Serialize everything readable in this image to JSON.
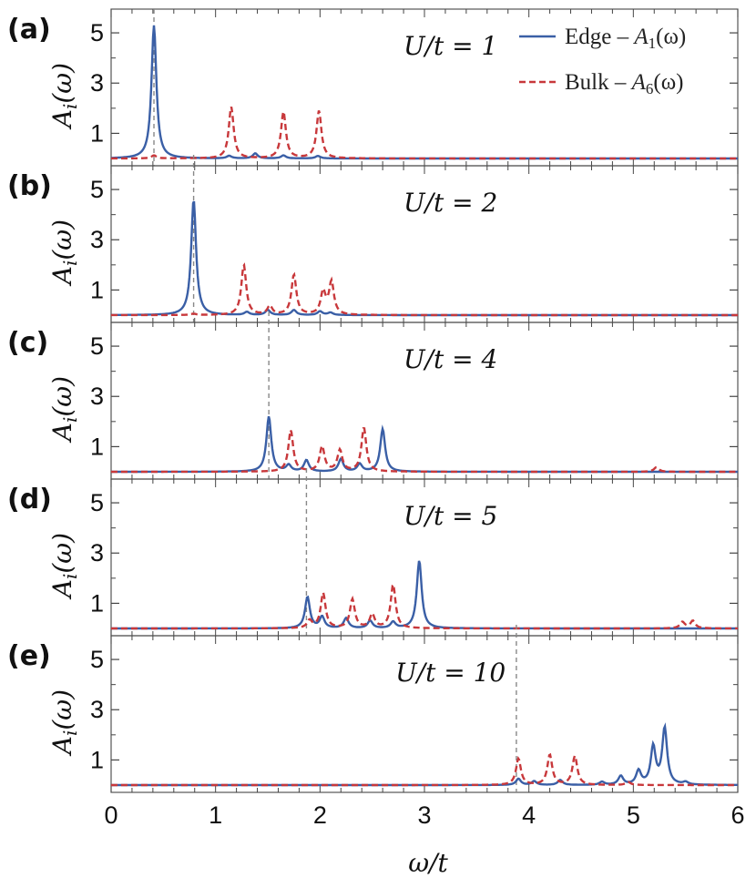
{
  "chart_data": {
    "type": "line",
    "xlabel": "ω/t",
    "ylabel": "A_i(ω)",
    "xlim": [
      0,
      6
    ],
    "ylim": [
      0,
      5.8
    ],
    "xticks": [
      "0",
      "1",
      "2",
      "3",
      "4",
      "5",
      "6"
    ],
    "yticks": [
      "1",
      "3",
      "5"
    ],
    "colors": {
      "edge": "#3a5fa6",
      "bulk": "#c8383b",
      "marker": "#888888"
    },
    "legend": {
      "position": "top-right",
      "entries": [
        {
          "label": "Edge – ",
          "math": "A",
          "sub": "1",
          "arg": "(ω)",
          "series": "edge",
          "style": "solid"
        },
        {
          "label": "Bulk  – ",
          "math": "A",
          "sub": "6",
          "arg": "(ω)",
          "series": "bulk",
          "style": "dashed"
        }
      ]
    },
    "panels": [
      {
        "tag": "(a)",
        "label": "U/t = 1",
        "marker_x": 0.41,
        "series": [
          {
            "name": "Edge – A1(ω)",
            "peaks": [
              [
                0.41,
                5.3
              ],
              [
                1.13,
                0.1
              ],
              [
                1.38,
                0.2
              ],
              [
                1.65,
                0.12
              ],
              [
                1.98,
                0.1
              ]
            ]
          },
          {
            "name": "Bulk – A6(ω)",
            "peaks": [
              [
                0.41,
                0.12
              ],
              [
                1.15,
                2.05
              ],
              [
                1.65,
                1.85
              ],
              [
                1.99,
                1.9
              ]
            ]
          }
        ]
      },
      {
        "tag": "(b)",
        "label": "U/t = 2",
        "marker_x": 0.79,
        "series": [
          {
            "name": "Edge – A1(ω)",
            "peaks": [
              [
                0.79,
                4.6
              ],
              [
                1.3,
                0.12
              ],
              [
                1.5,
                0.2
              ],
              [
                1.75,
                0.2
              ],
              [
                2.0,
                0.15
              ],
              [
                2.1,
                0.1
              ]
            ]
          },
          {
            "name": "Bulk – A6(ω)",
            "peaks": [
              [
                0.79,
                0.05
              ],
              [
                1.27,
                2.0
              ],
              [
                1.52,
                0.35
              ],
              [
                1.75,
                1.6
              ],
              [
                2.03,
                0.9
              ],
              [
                2.11,
                1.3
              ]
            ]
          }
        ]
      },
      {
        "tag": "(c)",
        "label": "U/t = 4",
        "marker_x": 1.51,
        "series": [
          {
            "name": "Edge – A1(ω)",
            "peaks": [
              [
                1.51,
                2.2
              ],
              [
                1.7,
                0.25
              ],
              [
                1.87,
                0.45
              ],
              [
                2.2,
                0.5
              ],
              [
                2.38,
                0.3
              ],
              [
                2.6,
                1.7
              ]
            ]
          },
          {
            "name": "Bulk – A6(ω)",
            "peaks": [
              [
                1.72,
                1.65
              ],
              [
                2.02,
                1.0
              ],
              [
                2.19,
                0.85
              ],
              [
                2.42,
                1.75
              ],
              [
                5.22,
                0.18
              ]
            ]
          }
        ]
      },
      {
        "tag": "(d)",
        "label": "U/t = 5",
        "marker_x": 1.87,
        "series": [
          {
            "name": "Edge – A1(ω)",
            "peaks": [
              [
                1.88,
                1.25
              ],
              [
                2.02,
                0.45
              ],
              [
                2.25,
                0.4
              ],
              [
                2.48,
                0.3
              ],
              [
                2.7,
                0.25
              ],
              [
                2.95,
                2.7
              ]
            ]
          },
          {
            "name": "Bulk – A6(ω)",
            "peaks": [
              [
                1.9,
                0.3
              ],
              [
                2.03,
                1.4
              ],
              [
                2.31,
                1.15
              ],
              [
                2.5,
                0.55
              ],
              [
                2.7,
                1.75
              ],
              [
                5.47,
                0.25
              ],
              [
                5.57,
                0.3
              ]
            ]
          }
        ]
      },
      {
        "tag": "(e)",
        "label": "U/t = 10",
        "marker_x": 3.88,
        "series": [
          {
            "name": "Edge – A1(ω)",
            "peaks": [
              [
                3.9,
                0.25
              ],
              [
                4.05,
                0.15
              ],
              [
                4.3,
                0.2
              ],
              [
                4.7,
                0.12
              ],
              [
                4.88,
                0.35
              ],
              [
                5.05,
                0.55
              ],
              [
                5.19,
                1.5
              ],
              [
                5.3,
                2.25
              ],
              [
                5.5,
                0.1
              ]
            ]
          },
          {
            "name": "Bulk – A6(ω)",
            "peaks": [
              [
                3.9,
                1.05
              ],
              [
                4.2,
                1.2
              ],
              [
                4.44,
                1.15
              ],
              [
                4.95,
                0.12
              ]
            ]
          }
        ]
      }
    ]
  }
}
